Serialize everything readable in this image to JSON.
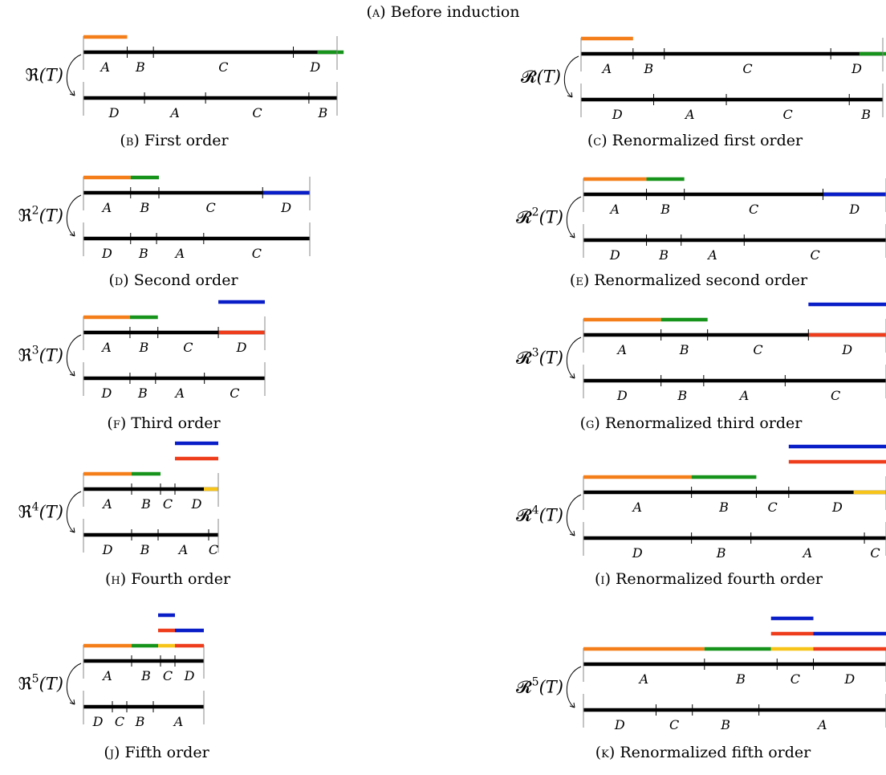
{
  "title_caption": {
    "tag": "a",
    "text": "Before induction"
  },
  "colors": {
    "bar": "#000000",
    "orange": "#f47f1a",
    "green": "#16931a",
    "blue": "#0a1ec8",
    "red": "#ee3d1c",
    "yellow": "#f7c51a"
  },
  "panels": [
    {
      "id": "b",
      "caption": {
        "tag": "b",
        "text": "First order"
      },
      "map": {
        "symbol": "ℜ",
        "power": "",
        "arg": "(T)"
      },
      "top": {
        "segments": [
          {
            "label": "A",
            "len": 1.0
          },
          {
            "label": "B",
            "len": 0.6
          },
          {
            "label": "C",
            "len": 3.2
          },
          {
            "label": "D",
            "len": 1.0
          }
        ],
        "colored_segments": [
          {
            "start": 5.35,
            "end": 5.95,
            "color": "green"
          }
        ]
      },
      "bottom": {
        "segments": [
          {
            "label": "D",
            "len": 1.3
          },
          {
            "label": "A",
            "len": 1.3
          },
          {
            "label": "C",
            "len": 2.2
          },
          {
            "label": "B",
            "len": 0.6
          }
        ]
      },
      "stacks": [
        [
          {
            "start": 0.0,
            "end": 1.0,
            "color": "orange"
          }
        ]
      ]
    },
    {
      "id": "c",
      "caption": {
        "tag": "c",
        "text": "Renormalized first order"
      },
      "map": {
        "symbol": "𝓡",
        "power": "",
        "arg": "(T)"
      },
      "top": {
        "segments": [
          {
            "label": "A",
            "len": 1.0
          },
          {
            "label": "B",
            "len": 0.6
          },
          {
            "label": "C",
            "len": 3.2
          },
          {
            "label": "D",
            "len": 1.0
          }
        ],
        "colored_segments": [
          {
            "start": 5.35,
            "end": 5.95,
            "color": "green"
          }
        ]
      },
      "bottom": {
        "segments": [
          {
            "label": "D",
            "len": 1.3
          },
          {
            "label": "A",
            "len": 1.3
          },
          {
            "label": "C",
            "len": 2.2
          },
          {
            "label": "B",
            "len": 0.6
          }
        ]
      },
      "stacks": [
        [
          {
            "start": 0.0,
            "end": 1.0,
            "color": "orange"
          }
        ]
      ]
    },
    {
      "id": "d",
      "caption": {
        "tag": "d",
        "text": "Second order"
      },
      "map": {
        "symbol": "ℜ",
        "power": "2",
        "arg": "(T)"
      },
      "top": {
        "segments": [
          {
            "label": "A",
            "len": 1.0
          },
          {
            "label": "B",
            "len": 0.6
          },
          {
            "label": "C",
            "len": 2.2
          },
          {
            "label": "D",
            "len": 1.0
          }
        ],
        "colored_segments": [
          {
            "start": 3.8,
            "end": 4.8,
            "color": "blue"
          }
        ]
      },
      "bottom": {
        "segments": [
          {
            "label": "D",
            "len": 1.0
          },
          {
            "label": "B",
            "len": 0.55
          },
          {
            "label": "A",
            "len": 1.0
          },
          {
            "label": "C",
            "len": 2.25
          }
        ]
      },
      "stacks": [
        [
          {
            "start": 0.0,
            "end": 1.0,
            "color": "orange"
          },
          {
            "start": 1.0,
            "end": 1.6,
            "color": "green"
          }
        ]
      ]
    },
    {
      "id": "e",
      "caption": {
        "tag": "e",
        "text": "Renormalized second order"
      },
      "map": {
        "symbol": "𝓡",
        "power": "2",
        "arg": "(T)"
      },
      "top": {
        "segments": [
          {
            "label": "A",
            "len": 1.0
          },
          {
            "label": "B",
            "len": 0.6
          },
          {
            "label": "C",
            "len": 2.2
          },
          {
            "label": "D",
            "len": 1.0
          }
        ],
        "colored_segments": [
          {
            "start": 3.8,
            "end": 4.8,
            "color": "blue"
          }
        ]
      },
      "bottom": {
        "segments": [
          {
            "label": "D",
            "len": 1.0
          },
          {
            "label": "B",
            "len": 0.55
          },
          {
            "label": "A",
            "len": 1.0
          },
          {
            "label": "C",
            "len": 2.25
          }
        ]
      },
      "stacks": [
        [
          {
            "start": 0.0,
            "end": 1.0,
            "color": "orange"
          },
          {
            "start": 1.0,
            "end": 1.6,
            "color": "green"
          }
        ]
      ]
    },
    {
      "id": "f",
      "caption": {
        "tag": "f",
        "text": "Third order"
      },
      "map": {
        "symbol": "ℜ",
        "power": "3",
        "arg": "(T)"
      },
      "top": {
        "segments": [
          {
            "label": "A",
            "len": 1.0
          },
          {
            "label": "B",
            "len": 0.6
          },
          {
            "label": "C",
            "len": 1.3
          },
          {
            "label": "D",
            "len": 1.0
          }
        ],
        "colored_segments": [
          {
            "start": 2.9,
            "end": 3.9,
            "color": "red"
          }
        ]
      },
      "bottom": {
        "segments": [
          {
            "label": "D",
            "len": 1.0
          },
          {
            "label": "B",
            "len": 0.55
          },
          {
            "label": "A",
            "len": 1.05
          },
          {
            "label": "C",
            "len": 1.3
          }
        ]
      },
      "stacks": [
        [
          {
            "start": 0.0,
            "end": 1.0,
            "color": "orange"
          },
          {
            "start": 1.0,
            "end": 1.6,
            "color": "green"
          }
        ],
        [
          {
            "start": 2.9,
            "end": 3.9,
            "color": "blue"
          }
        ]
      ]
    },
    {
      "id": "g",
      "caption": {
        "tag": "g",
        "text": "Renormalized third order"
      },
      "map": {
        "symbol": "𝓡",
        "power": "3",
        "arg": "(T)"
      },
      "top": {
        "segments": [
          {
            "label": "A",
            "len": 1.0
          },
          {
            "label": "B",
            "len": 0.6
          },
          {
            "label": "C",
            "len": 1.3
          },
          {
            "label": "D",
            "len": 1.0
          }
        ],
        "colored_segments": [
          {
            "start": 2.9,
            "end": 3.9,
            "color": "red"
          }
        ]
      },
      "bottom": {
        "segments": [
          {
            "label": "D",
            "len": 1.0
          },
          {
            "label": "B",
            "len": 0.55
          },
          {
            "label": "A",
            "len": 1.05
          },
          {
            "label": "C",
            "len": 1.3
          }
        ]
      },
      "stacks": [
        [
          {
            "start": 0.0,
            "end": 1.0,
            "color": "orange"
          },
          {
            "start": 1.0,
            "end": 1.6,
            "color": "green"
          }
        ],
        [
          {
            "start": 2.9,
            "end": 3.9,
            "color": "blue"
          }
        ]
      ]
    },
    {
      "id": "h",
      "caption": {
        "tag": "h",
        "text": "Fourth order"
      },
      "map": {
        "symbol": "ℜ",
        "power": "4",
        "arg": "(T)"
      },
      "top": {
        "segments": [
          {
            "label": "A",
            "len": 1.0
          },
          {
            "label": "B",
            "len": 0.6
          },
          {
            "label": "C",
            "len": 0.3
          },
          {
            "label": "D",
            "len": 0.9
          }
        ],
        "colored_segments": [
          {
            "start": 2.5,
            "end": 2.8,
            "color": "yellow"
          }
        ]
      },
      "bottom": {
        "segments": [
          {
            "label": "D",
            "len": 1.0
          },
          {
            "label": "B",
            "len": 0.55
          },
          {
            "label": "A",
            "len": 1.05
          },
          {
            "label": "C",
            "len": 0.2
          }
        ]
      },
      "stacks": [
        [
          {
            "start": 0.0,
            "end": 1.0,
            "color": "orange"
          },
          {
            "start": 1.0,
            "end": 1.6,
            "color": "green"
          }
        ],
        [
          {
            "start": 1.9,
            "end": 2.8,
            "color": "red"
          }
        ],
        [
          {
            "start": 1.9,
            "end": 2.8,
            "color": "blue"
          }
        ]
      ]
    },
    {
      "id": "i",
      "caption": {
        "tag": "i",
        "text": "Renormalized fourth order"
      },
      "map": {
        "symbol": "𝓡",
        "power": "4",
        "arg": "(T)"
      },
      "top": {
        "segments": [
          {
            "label": "A",
            "len": 1.0
          },
          {
            "label": "B",
            "len": 0.6
          },
          {
            "label": "C",
            "len": 0.3
          },
          {
            "label": "D",
            "len": 0.9
          }
        ],
        "colored_segments": [
          {
            "start": 2.5,
            "end": 2.8,
            "color": "yellow"
          }
        ]
      },
      "bottom": {
        "segments": [
          {
            "label": "D",
            "len": 1.0
          },
          {
            "label": "B",
            "len": 0.55
          },
          {
            "label": "A",
            "len": 1.05
          },
          {
            "label": "C",
            "len": 0.2
          }
        ]
      },
      "stacks": [
        [
          {
            "start": 0.0,
            "end": 1.0,
            "color": "orange"
          },
          {
            "start": 1.0,
            "end": 1.6,
            "color": "green"
          }
        ],
        [
          {
            "start": 1.9,
            "end": 2.8,
            "color": "red"
          }
        ],
        [
          {
            "start": 1.9,
            "end": 2.8,
            "color": "blue"
          }
        ]
      ]
    },
    {
      "id": "j",
      "caption": {
        "tag": "j",
        "text": "Fifth order"
      },
      "map": {
        "symbol": "ℜ",
        "power": "5",
        "arg": "(T)"
      },
      "top": {
        "segments": [
          {
            "label": "A",
            "len": 1.0
          },
          {
            "label": "B",
            "len": 0.6
          },
          {
            "label": "C",
            "len": 0.3
          },
          {
            "label": "D",
            "len": 0.6
          }
        ],
        "colored_segments": []
      },
      "bottom": {
        "segments": [
          {
            "label": "D",
            "len": 0.6
          },
          {
            "label": "C",
            "len": 0.3
          },
          {
            "label": "B",
            "len": 0.55
          },
          {
            "label": "A",
            "len": 1.05
          }
        ]
      },
      "stacks": [
        [
          {
            "start": 0.0,
            "end": 1.0,
            "color": "orange"
          },
          {
            "start": 1.0,
            "end": 1.55,
            "color": "green"
          },
          {
            "start": 1.55,
            "end": 1.9,
            "color": "yellow"
          },
          {
            "start": 1.9,
            "end": 2.5,
            "color": "red"
          }
        ],
        [
          {
            "start": 1.55,
            "end": 1.9,
            "color": "red"
          },
          {
            "start": 1.9,
            "end": 2.5,
            "color": "blue"
          }
        ],
        [
          {
            "start": 1.55,
            "end": 1.9,
            "color": "blue"
          }
        ]
      ]
    },
    {
      "id": "k",
      "caption": {
        "tag": "k",
        "text": "Renormalized fifth order"
      },
      "map": {
        "symbol": "𝓡",
        "power": "5",
        "arg": "(T)"
      },
      "top": {
        "segments": [
          {
            "label": "A",
            "len": 1.0
          },
          {
            "label": "B",
            "len": 0.6
          },
          {
            "label": "C",
            "len": 0.3
          },
          {
            "label": "D",
            "len": 0.6
          }
        ],
        "colored_segments": []
      },
      "bottom": {
        "segments": [
          {
            "label": "D",
            "len": 0.6
          },
          {
            "label": "C",
            "len": 0.3
          },
          {
            "label": "B",
            "len": 0.55
          },
          {
            "label": "A",
            "len": 1.05
          }
        ]
      },
      "stacks": [
        [
          {
            "start": 0.0,
            "end": 1.0,
            "color": "orange"
          },
          {
            "start": 1.0,
            "end": 1.55,
            "color": "green"
          },
          {
            "start": 1.55,
            "end": 1.9,
            "color": "yellow"
          },
          {
            "start": 1.9,
            "end": 2.5,
            "color": "red"
          }
        ],
        [
          {
            "start": 1.55,
            "end": 1.9,
            "color": "red"
          },
          {
            "start": 1.9,
            "end": 2.5,
            "color": "blue"
          }
        ],
        [
          {
            "start": 1.55,
            "end": 1.9,
            "color": "blue"
          }
        ]
      ]
    }
  ]
}
